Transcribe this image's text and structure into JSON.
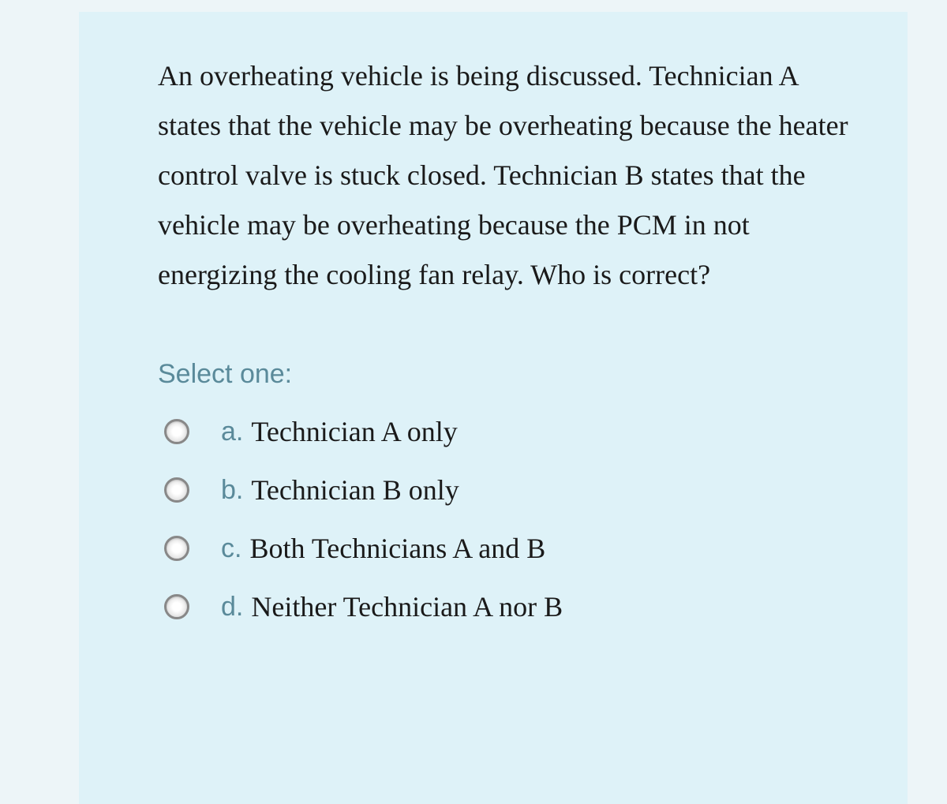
{
  "question": {
    "text": "An overheating vehicle is being discussed. Technician A states that the vehicle may be overheating because the heater control valve is stuck closed. Technician B states that the vehicle may be overheating because the PCM in not energizing the cooling fan relay. Who is correct?",
    "select_label": "Select one:",
    "options": [
      {
        "letter": "a.",
        "text": "Technician A only"
      },
      {
        "letter": "b.",
        "text": "Technician B only"
      },
      {
        "letter": "c.",
        "text": "Both Technicians A and B"
      },
      {
        "letter": "d.",
        "text": "Neither Technician A nor B"
      }
    ]
  },
  "colors": {
    "outer_background": "#edf5f8",
    "card_background": "#def2f8",
    "question_text": "#1a1a1a",
    "label_text": "#5a8a9a",
    "option_text": "#1a1a1a",
    "radio_border": "#888888"
  },
  "typography": {
    "question_fontsize": 36,
    "label_fontsize": 34,
    "option_fontsize": 36,
    "question_font": "Georgia, serif",
    "label_font": "Arial, sans-serif"
  }
}
